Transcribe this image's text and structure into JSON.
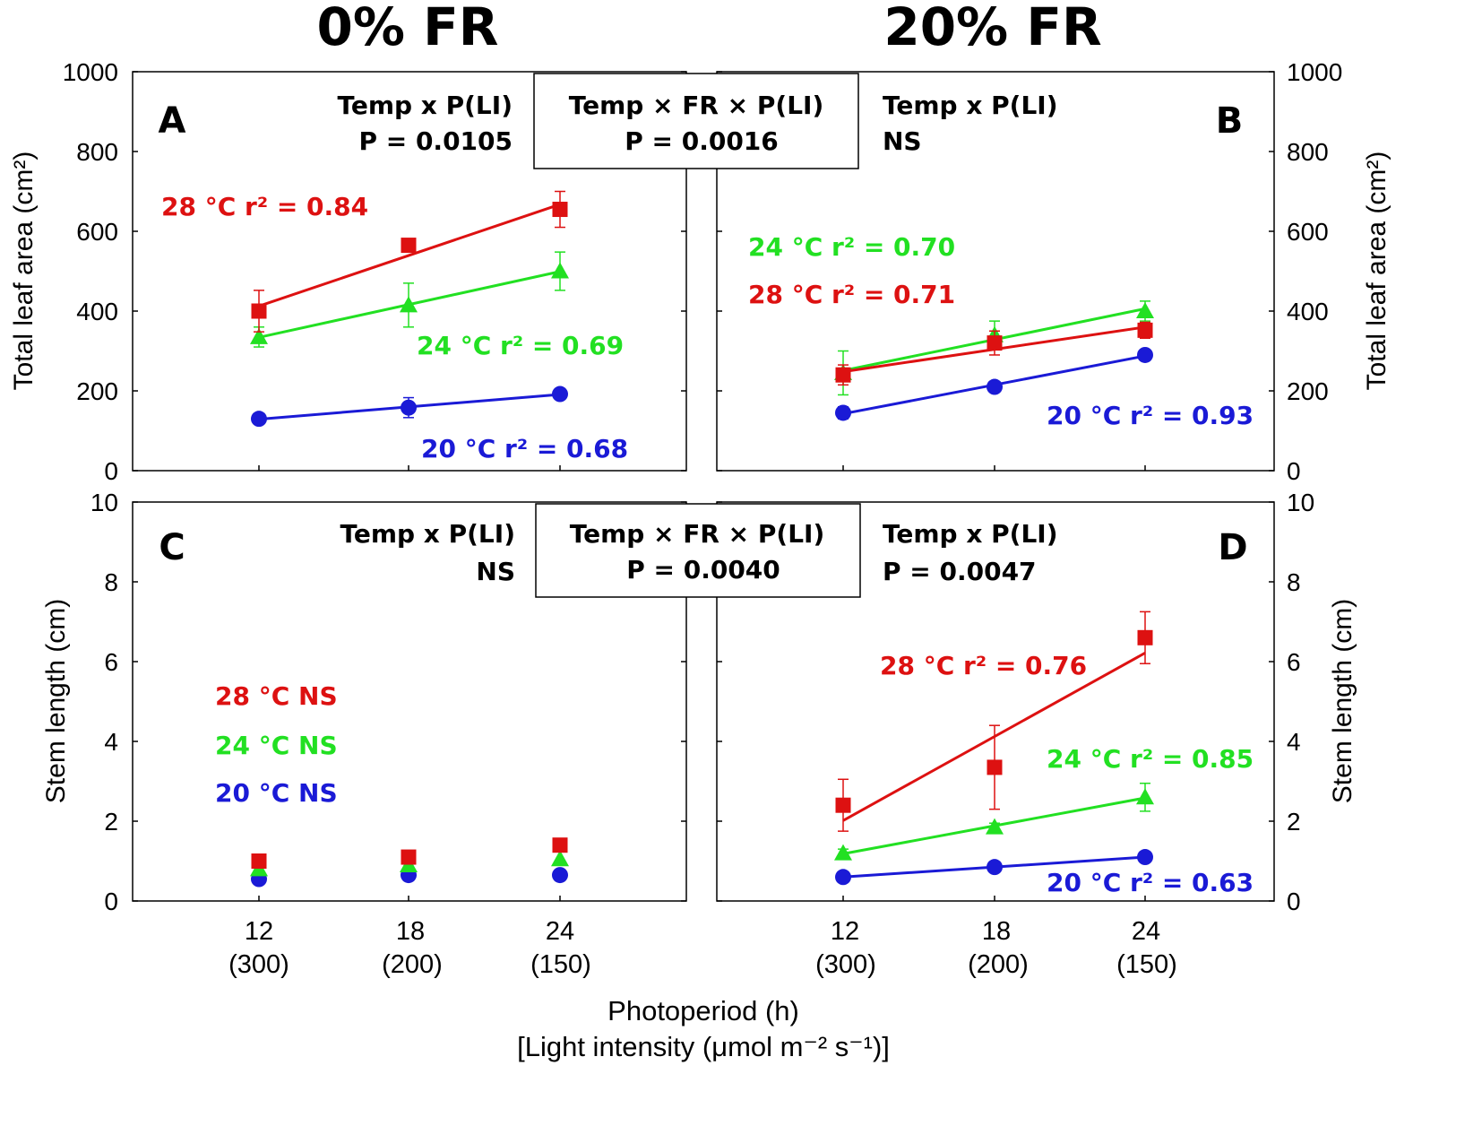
{
  "figure": {
    "col_titles": [
      "0% FR",
      "20% FR"
    ],
    "xlabel_line1": "Photoperiod (h)",
    "xlabel_line2": "[Light intensity (μmol m⁻² s⁻¹)]",
    "x_ticks": [
      {
        "top": "12",
        "bottom": "(300)"
      },
      {
        "top": "18",
        "bottom": "(200)"
      },
      {
        "top": "24",
        "bottom": "(150)"
      }
    ],
    "center_boxes": [
      {
        "line1": "Temp × FR × P(LI)",
        "line2": "P = 0.0016"
      },
      {
        "line1": "Temp × FR × P(LI)",
        "line2": "P = 0.0040"
      }
    ]
  },
  "colors": {
    "20": "#1a1ad6",
    "24": "#22e022",
    "28": "#dd1111",
    "axis": "#000000"
  },
  "chart_data": [
    {
      "type": "scatter",
      "panel": "A",
      "column": "0% FR",
      "ylabel": "Total leaf area (cm²)",
      "ylim": [
        0,
        1000
      ],
      "yticks": [
        "0",
        "200",
        "400",
        "600",
        "800",
        "1000"
      ],
      "x": [
        12,
        18,
        24
      ],
      "stat_line1": "Temp x P(LI)",
      "stat_line2": "P = 0.0105",
      "series": [
        {
          "temp": "20",
          "marker": "circle",
          "values": [
            130,
            158,
            192
          ],
          "errors": [
            8,
            25,
            8
          ],
          "fit": true,
          "label": "20 °C  r² = 0.68"
        },
        {
          "temp": "24",
          "marker": "triangle",
          "values": [
            335,
            415,
            500
          ],
          "errors": [
            25,
            55,
            48
          ],
          "fit": true,
          "label": "24 °C  r² = 0.69"
        },
        {
          "temp": "28",
          "marker": "square",
          "values": [
            400,
            565,
            655
          ],
          "errors": [
            52,
            10,
            45
          ],
          "fit": true,
          "label": "28 °C  r² = 0.84"
        }
      ]
    },
    {
      "type": "scatter",
      "panel": "B",
      "column": "20% FR",
      "ylabel": "Total leaf area (cm²)",
      "ylim": [
        0,
        1000
      ],
      "yticks": [
        "0",
        "200",
        "400",
        "600",
        "800",
        "1000"
      ],
      "x": [
        12,
        18,
        24
      ],
      "stat_line1": "Temp x P(LI)",
      "stat_line2": "NS",
      "series": [
        {
          "temp": "20",
          "marker": "circle",
          "values": [
            145,
            210,
            290
          ],
          "errors": [
            15,
            10,
            10
          ],
          "fit": true,
          "label": "20 °C  r² = 0.93"
        },
        {
          "temp": "24",
          "marker": "triangle",
          "values": [
            245,
            340,
            400
          ],
          "errors": [
            55,
            35,
            25
          ],
          "fit": true,
          "label": "24 °C  r² = 0.70"
        },
        {
          "temp": "28",
          "marker": "square",
          "values": [
            240,
            320,
            352
          ],
          "errors": [
            25,
            30,
            20
          ],
          "fit": true,
          "label": "28 °C  r² = 0.71"
        }
      ]
    },
    {
      "type": "scatter",
      "panel": "C",
      "column": "0% FR",
      "ylabel": "Stem length (cm)",
      "ylim": [
        0,
        10
      ],
      "yticks": [
        "0",
        "2",
        "4",
        "6",
        "8",
        "10"
      ],
      "x": [
        12,
        18,
        24
      ],
      "stat_line1": "Temp x P(LI)",
      "stat_line2": "NS",
      "series": [
        {
          "temp": "20",
          "marker": "circle",
          "values": [
            0.55,
            0.65,
            0.65
          ],
          "errors": [
            0,
            0,
            0
          ],
          "fit": false,
          "label": "20 °C  NS"
        },
        {
          "temp": "24",
          "marker": "triangle",
          "values": [
            0.8,
            0.9,
            1.05
          ],
          "errors": [
            0,
            0,
            0
          ],
          "fit": false,
          "label": "24 °C  NS"
        },
        {
          "temp": "28",
          "marker": "square",
          "values": [
            1.0,
            1.1,
            1.4
          ],
          "errors": [
            0,
            0,
            0
          ],
          "fit": false,
          "label": "28 °C  NS"
        }
      ]
    },
    {
      "type": "scatter",
      "panel": "D",
      "column": "20% FR",
      "ylabel": "Stem length (cm)",
      "ylim": [
        0,
        10
      ],
      "yticks": [
        "0",
        "2",
        "4",
        "6",
        "8",
        "10"
      ],
      "x": [
        12,
        18,
        24
      ],
      "stat_line1": "Temp x P(LI)",
      "stat_line2": "P = 0.0047",
      "series": [
        {
          "temp": "20",
          "marker": "circle",
          "values": [
            0.6,
            0.85,
            1.1
          ],
          "errors": [
            0,
            0,
            0
          ],
          "fit": true,
          "label": "20 °C  r² = 0.63"
        },
        {
          "temp": "24",
          "marker": "triangle",
          "values": [
            1.2,
            1.85,
            2.6
          ],
          "errors": [
            0.1,
            0.1,
            0.35
          ],
          "fit": true,
          "label": "24 °C  r² = 0.85"
        },
        {
          "temp": "28",
          "marker": "square",
          "values": [
            2.4,
            3.35,
            6.6
          ],
          "errors": [
            0.65,
            1.05,
            0.65
          ],
          "fit": true,
          "label": "28 °C  r² = 0.76"
        }
      ]
    }
  ]
}
